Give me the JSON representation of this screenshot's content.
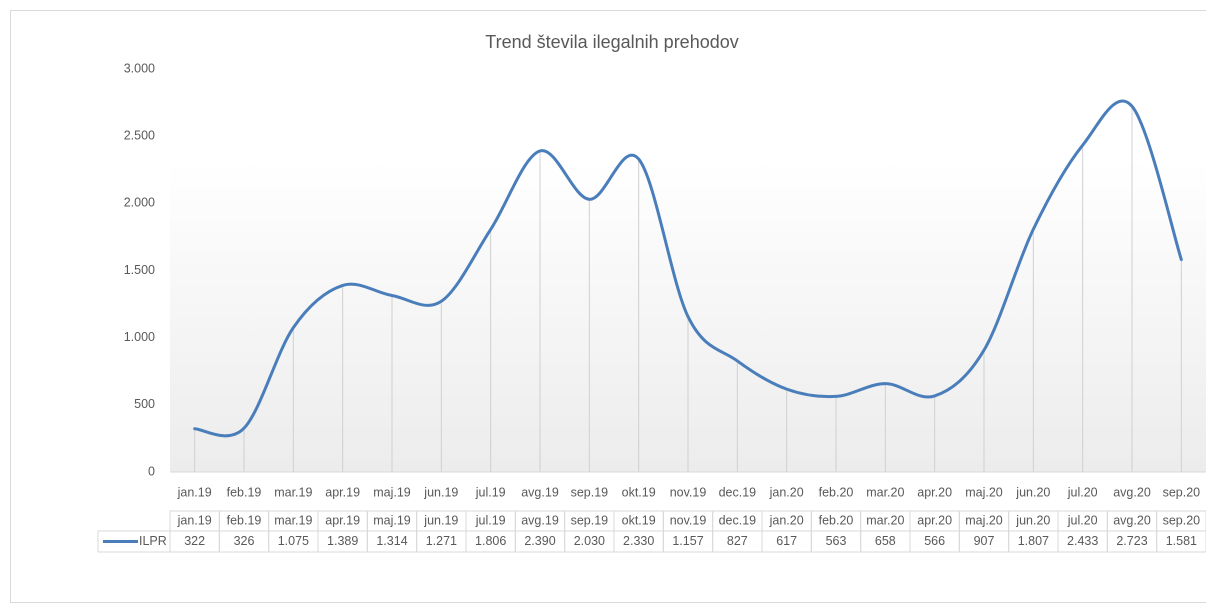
{
  "chart_data": {
    "type": "line",
    "title": "Trend števila ilegalnih prehodov",
    "categories": [
      "jan.19",
      "feb.19",
      "mar.19",
      "apr.19",
      "maj.19",
      "jun.19",
      "jul.19",
      "avg.19",
      "sep.19",
      "okt.19",
      "nov.19",
      "dec.19",
      "jan.20",
      "feb.20",
      "mar.20",
      "apr.20",
      "maj.20",
      "jun.20",
      "jul.20",
      "avg.20",
      "sep.20"
    ],
    "series": [
      {
        "name": "ILPR",
        "color": "#4a7ebb",
        "values": [
          322,
          326,
          1075,
          1389,
          1314,
          1271,
          1806,
          2390,
          2030,
          2330,
          1157,
          827,
          617,
          563,
          658,
          566,
          907,
          1807,
          2433,
          2723,
          1581
        ],
        "value_labels": [
          "322",
          "326",
          "1.075",
          "1.389",
          "1.314",
          "1.271",
          "1.806",
          "2.390",
          "2.030",
          "2.330",
          "1.157",
          "827",
          "617",
          "563",
          "658",
          "566",
          "907",
          "1.807",
          "2.433",
          "2.723",
          "1.581"
        ]
      }
    ],
    "ylim": [
      0,
      3000
    ],
    "yticks": [
      0,
      500,
      {
        "value": 1000,
        "label": "1.000"
      },
      {
        "value": 1500,
        "label": "1.500"
      },
      {
        "value": 2000,
        "label": "2.000"
      },
      {
        "value": 2500,
        "label": "2.500"
      },
      {
        "value": 3000,
        "label": "3.000"
      }
    ],
    "smooth": true,
    "drop_lines": true,
    "data_table": true
  }
}
